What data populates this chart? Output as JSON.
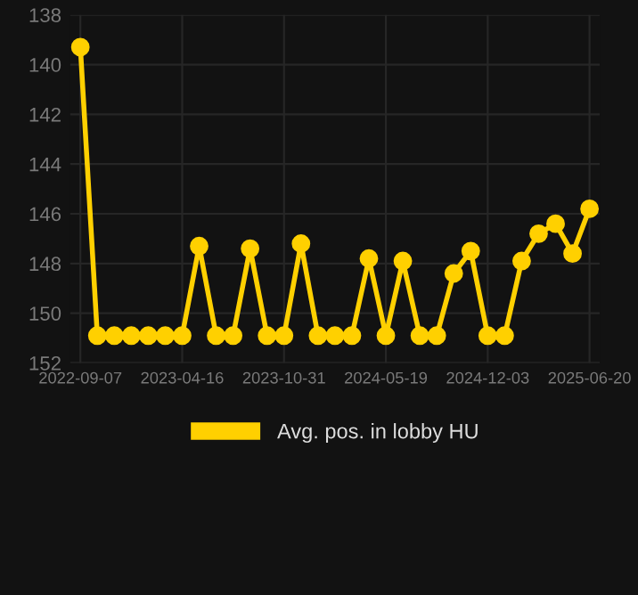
{
  "chart_data": {
    "type": "line",
    "categories": [
      "2022-09-07",
      null,
      null,
      null,
      null,
      null,
      "2023-04-16",
      null,
      null,
      null,
      null,
      null,
      "2023-10-31",
      null,
      null,
      null,
      null,
      null,
      "2024-05-19",
      null,
      null,
      null,
      null,
      null,
      "2024-12-03",
      null,
      null,
      null,
      null,
      null,
      "2025-06-20"
    ],
    "series": [
      {
        "name": "Avg. pos. in lobby HU",
        "color": "#ffd000",
        "values": [
          139.3,
          150.9,
          150.9,
          150.9,
          150.9,
          150.9,
          150.9,
          147.3,
          150.9,
          150.9,
          147.4,
          150.9,
          150.9,
          147.2,
          150.9,
          150.9,
          150.9,
          147.8,
          150.9,
          147.9,
          150.9,
          150.9,
          148.4,
          147.5,
          150.9,
          150.9,
          147.9,
          146.8,
          146.4,
          147.6,
          145.8
        ]
      }
    ],
    "ylim": [
      152,
      138
    ],
    "yticks": [
      138,
      140,
      142,
      144,
      146,
      148,
      150,
      152
    ],
    "grid": true,
    "legend": "bottom",
    "marker": "circle",
    "line_style": "solid"
  }
}
